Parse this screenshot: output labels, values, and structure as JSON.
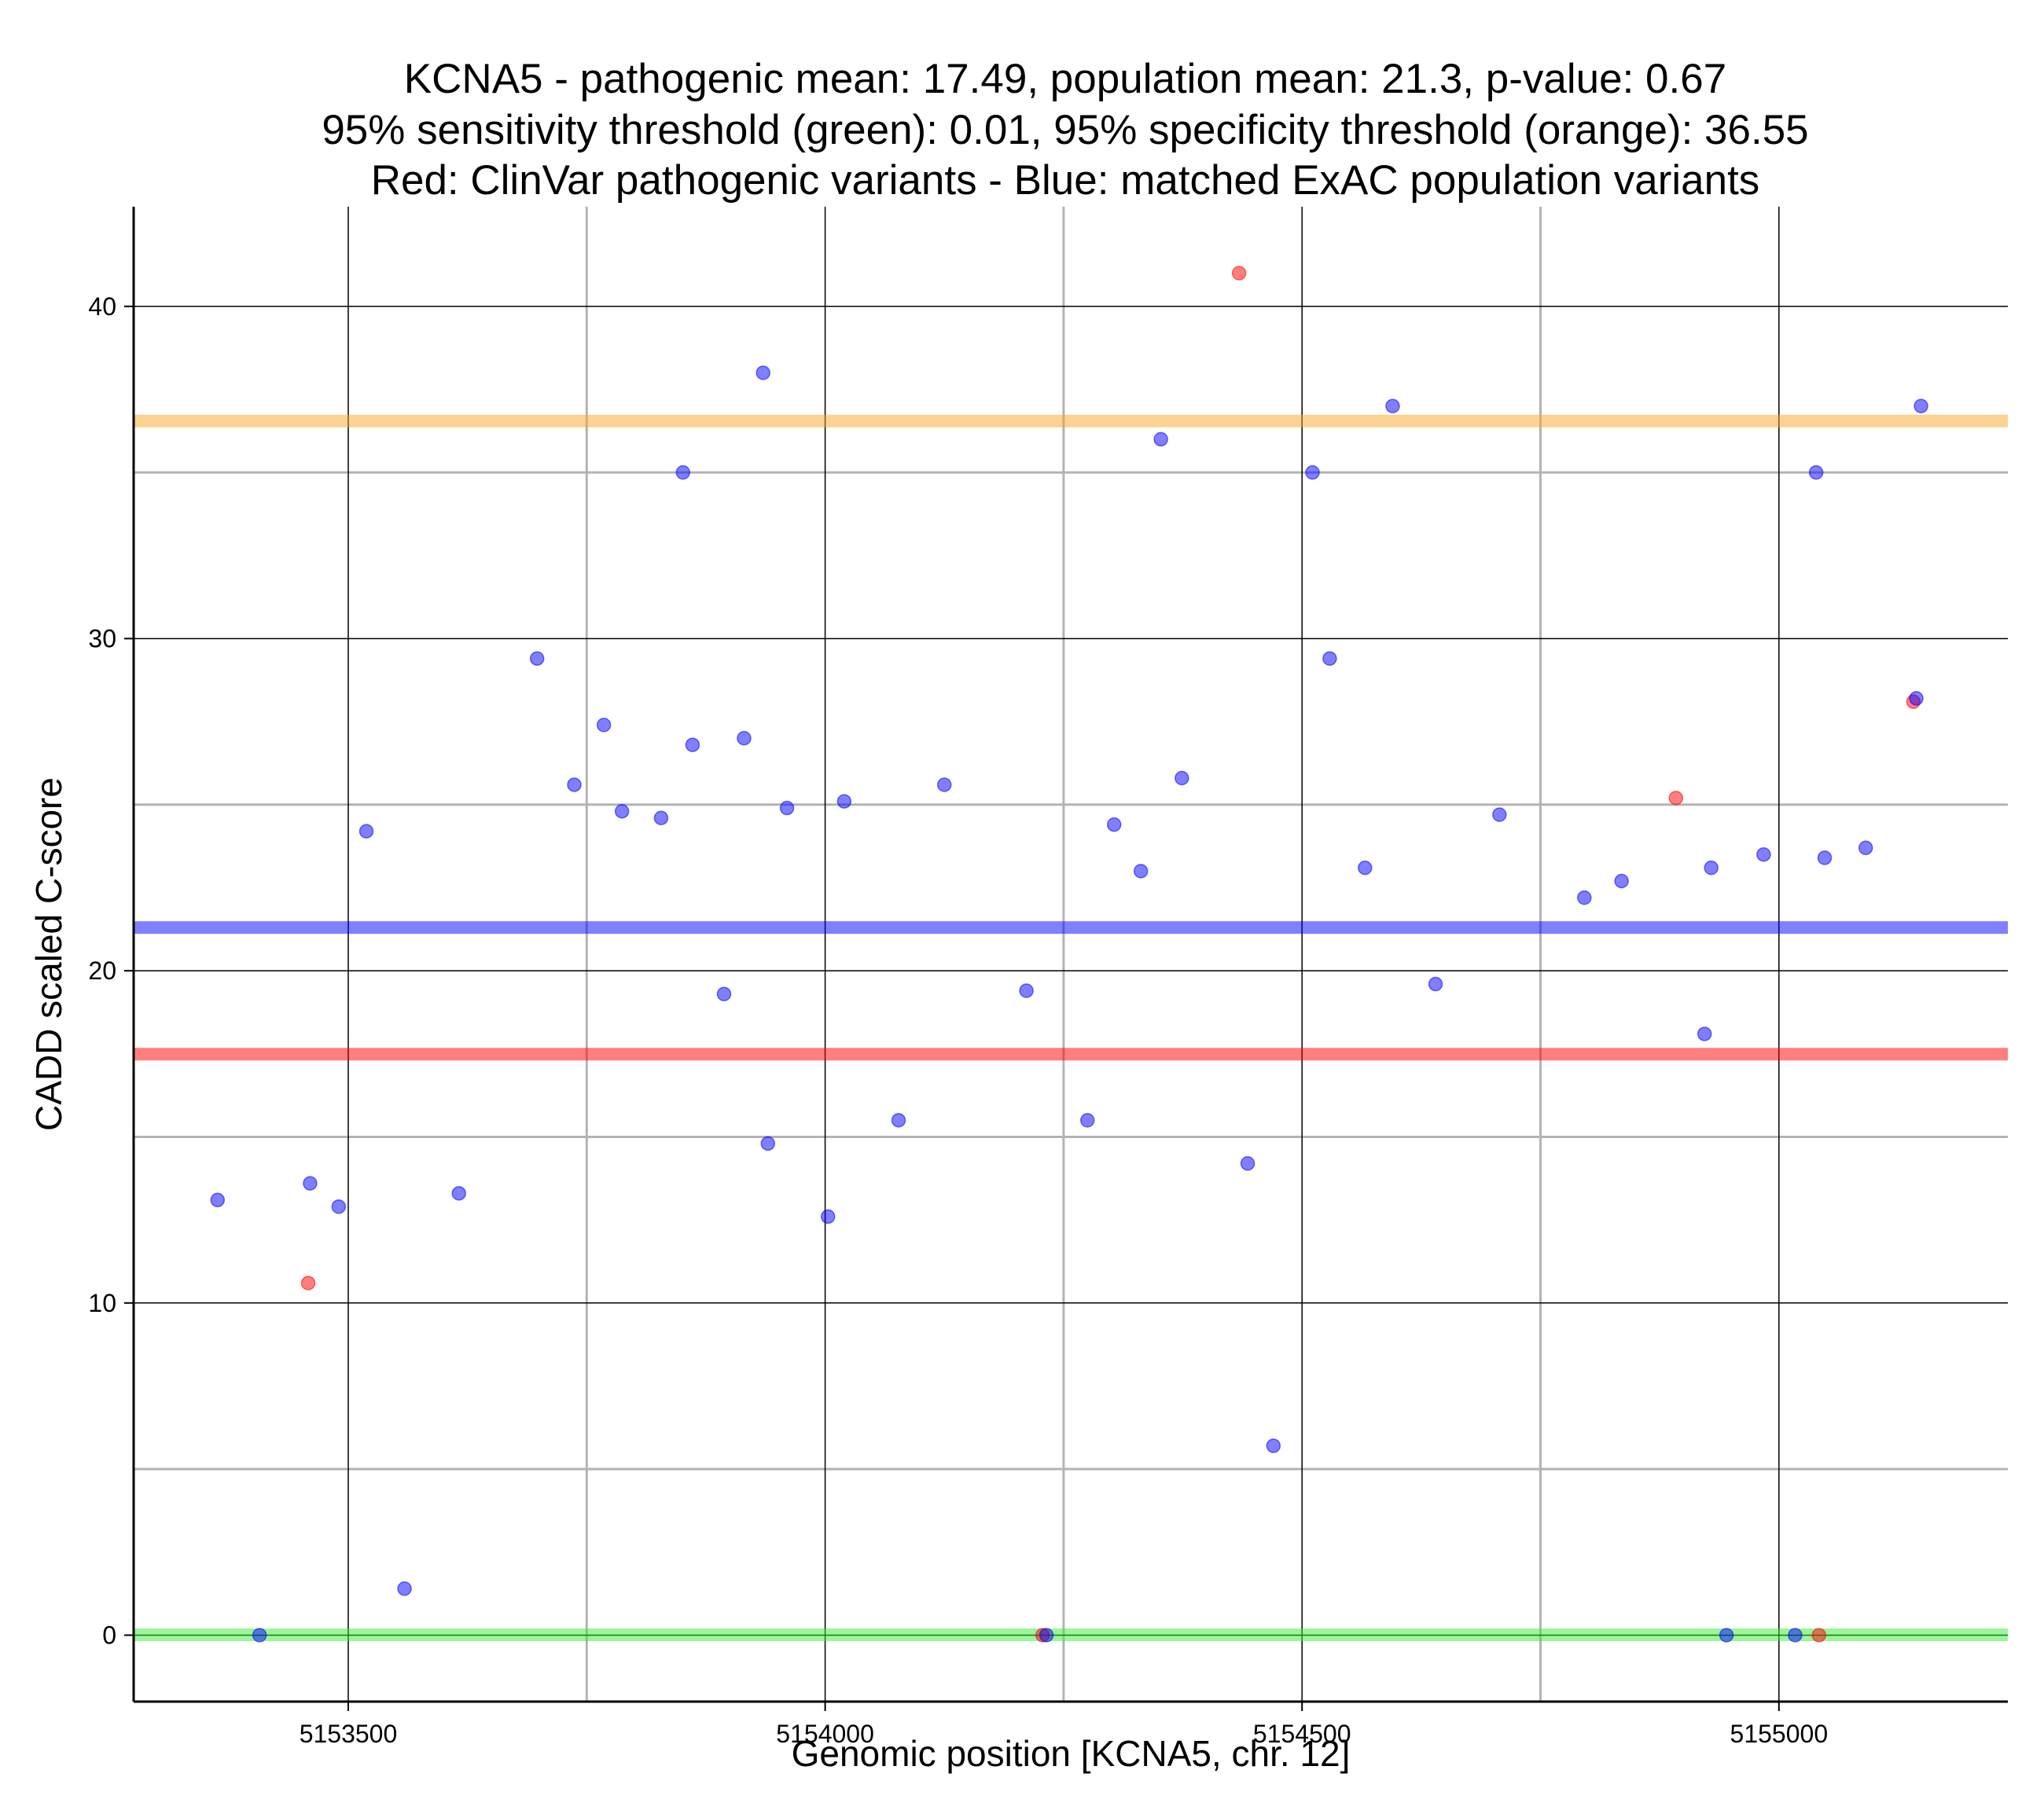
{
  "chart_data": {
    "type": "scatter",
    "title_lines": [
      "KCNA5 - pathogenic mean: 17.49, population mean: 21.3, p-value: 0.67",
      "95% sensitivity threshold (green): 0.01, 95% specificity threshold (orange): 36.55",
      "Red: ClinVar pathogenic variants - Blue: matched ExAC population variants"
    ],
    "xlabel": "Genomic position [KCNA5, chr. 12]",
    "ylabel": "CADD scaled C-score",
    "xlim": [
      5153275,
      5155240
    ],
    "ylim": [
      -2,
      43
    ],
    "x_major_ticks": [
      5153500,
      5154000,
      5154500,
      5155000
    ],
    "x_minor_grid": [
      5153750,
      5154250,
      5154750
    ],
    "y_major_ticks": [
      0,
      10,
      20,
      30,
      40
    ],
    "y_minor_grid": [
      5,
      15,
      25,
      35
    ],
    "grid": true,
    "colors": {
      "pathogenic": "#ff0000",
      "population": "#0000ff",
      "sensitivity_line": "#33ee33",
      "specificity_line": "#f5a623",
      "pathogenic_mean_line": "#ff0000",
      "population_mean_line": "#0000ff"
    },
    "reference_lines": [
      {
        "name": "specificity threshold",
        "y": 36.55,
        "color_key": "specificity_line"
      },
      {
        "name": "population mean",
        "y": 21.3,
        "color_key": "population_mean_line"
      },
      {
        "name": "pathogenic mean",
        "y": 17.49,
        "color_key": "pathogenic_mean_line"
      },
      {
        "name": "sensitivity threshold",
        "y": 0.01,
        "color_key": "sensitivity_line"
      }
    ],
    "series": [
      {
        "name": "ClinVar pathogenic variants",
        "color_key": "pathogenic",
        "points": [
          {
            "x": 5153458,
            "y": 10.6
          },
          {
            "x": 5154434,
            "y": 41.0
          },
          {
            "x": 5154228,
            "y": 0.0
          },
          {
            "x": 5154892,
            "y": 25.2
          },
          {
            "x": 5155042,
            "y": 0.0
          },
          {
            "x": 5155141,
            "y": 28.1
          }
        ]
      },
      {
        "name": "matched ExAC population variants",
        "color_key": "population",
        "points": [
          {
            "x": 5153363,
            "y": 13.1
          },
          {
            "x": 5153407,
            "y": 0.0
          },
          {
            "x": 5153460,
            "y": 13.6
          },
          {
            "x": 5153490,
            "y": 12.9
          },
          {
            "x": 5153519,
            "y": 24.2
          },
          {
            "x": 5153559,
            "y": 1.4
          },
          {
            "x": 5153616,
            "y": 13.3
          },
          {
            "x": 5153698,
            "y": 29.4
          },
          {
            "x": 5153737,
            "y": 25.6
          },
          {
            "x": 5153768,
            "y": 27.4
          },
          {
            "x": 5153787,
            "y": 24.8
          },
          {
            "x": 5153828,
            "y": 24.6
          },
          {
            "x": 5153851,
            "y": 35.0
          },
          {
            "x": 5153861,
            "y": 26.8
          },
          {
            "x": 5153894,
            "y": 19.3
          },
          {
            "x": 5153915,
            "y": 27.0
          },
          {
            "x": 5153935,
            "y": 38.0
          },
          {
            "x": 5153940,
            "y": 14.8
          },
          {
            "x": 5153960,
            "y": 24.9
          },
          {
            "x": 5154003,
            "y": 12.6
          },
          {
            "x": 5154020,
            "y": 25.1
          },
          {
            "x": 5154077,
            "y": 15.5
          },
          {
            "x": 5154125,
            "y": 25.6
          },
          {
            "x": 5154211,
            "y": 19.4
          },
          {
            "x": 5154232,
            "y": 0.0
          },
          {
            "x": 5154275,
            "y": 15.5
          },
          {
            "x": 5154303,
            "y": 24.4
          },
          {
            "x": 5154331,
            "y": 23.0
          },
          {
            "x": 5154352,
            "y": 36.0
          },
          {
            "x": 5154374,
            "y": 25.8
          },
          {
            "x": 5154443,
            "y": 14.2
          },
          {
            "x": 5154470,
            "y": 5.7
          },
          {
            "x": 5154511,
            "y": 35.0
          },
          {
            "x": 5154529,
            "y": 29.4
          },
          {
            "x": 5154566,
            "y": 23.1
          },
          {
            "x": 5154595,
            "y": 37.0
          },
          {
            "x": 5154640,
            "y": 19.6
          },
          {
            "x": 5154707,
            "y": 24.7
          },
          {
            "x": 5154796,
            "y": 22.2
          },
          {
            "x": 5154835,
            "y": 22.7
          },
          {
            "x": 5154922,
            "y": 18.1
          },
          {
            "x": 5154929,
            "y": 23.1
          },
          {
            "x": 5154945,
            "y": 0.0
          },
          {
            "x": 5154984,
            "y": 23.5
          },
          {
            "x": 5155017,
            "y": 0.0
          },
          {
            "x": 5155039,
            "y": 35.0
          },
          {
            "x": 5155048,
            "y": 23.4
          },
          {
            "x": 5155091,
            "y": 23.7
          },
          {
            "x": 5155144,
            "y": 28.2
          },
          {
            "x": 5155149,
            "y": 37.0
          }
        ]
      }
    ]
  }
}
